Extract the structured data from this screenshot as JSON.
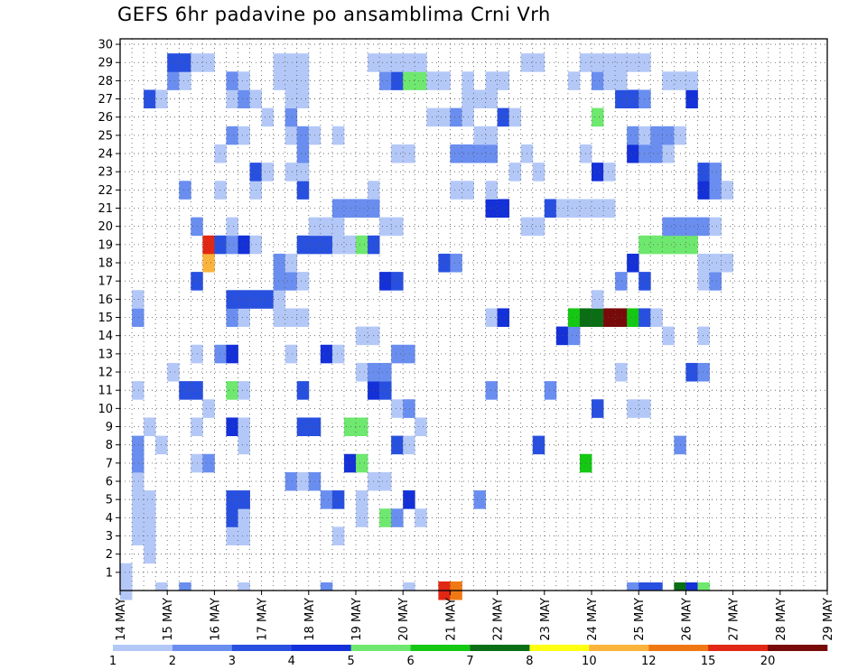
{
  "chart_data": {
    "type": "heatmap",
    "title": "GEFS 6hr padavine po ansamblima Crni Vrh",
    "x_tick_labels": [
      "14 MAY",
      "15 MAY",
      "16 MAY",
      "17 MAY",
      "18 MAY",
      "19 MAY",
      "20 MAY",
      "21 MAY",
      "22 MAY",
      "23 MAY",
      "24 MAY",
      "25 MAY",
      "26 MAY",
      "27 MAY",
      "28 MAY",
      "29 MAY"
    ],
    "y_tick_labels": [
      "1",
      "2",
      "3",
      "4",
      "5",
      "6",
      "7",
      "8",
      "9",
      "10",
      "11",
      "12",
      "13",
      "14",
      "15",
      "16",
      "17",
      "18",
      "19",
      "20",
      "21",
      "22",
      "23",
      "24",
      "25",
      "26",
      "27",
      "28",
      "29",
      "30"
    ],
    "x_time_steps_per_day": 4,
    "ylim": [
      0,
      30
    ],
    "grid": true,
    "legend_levels": [
      "1",
      "2",
      "3",
      "4",
      "5",
      "6",
      "7",
      "8",
      "10",
      "12",
      "15",
      "20"
    ],
    "legend_colors": [
      "#b4c8f8",
      "#6a8ef0",
      "#2850e0",
      "#1430d8",
      "#6ee86e",
      "#14c814",
      "#0a6e14",
      "#ffff14",
      "#fab43c",
      "#f07814",
      "#e02814",
      "#780a0a"
    ],
    "cells": [
      [
        0,
        1,
        1
      ],
      [
        30,
        5,
        2
      ],
      [
        31,
        11,
        2
      ],
      [
        0,
        0,
        11
      ],
      [
        27,
        0,
        15
      ],
      [
        28,
        0,
        12
      ],
      [
        2,
        2,
        1
      ],
      [
        10,
        4,
        1
      ],
      [
        25,
        9,
        1
      ],
      [
        36,
        11,
        2
      ],
      [
        24,
        10,
        1
      ],
      [
        2,
        3,
        1
      ],
      [
        1,
        3,
        1
      ],
      [
        9,
        3,
        1
      ],
      [
        10,
        3,
        1
      ],
      [
        22,
        4,
        5
      ],
      [
        23,
        4,
        2
      ],
      [
        24,
        5,
        4
      ],
      [
        25,
        4,
        1
      ],
      [
        1,
        4,
        1
      ],
      [
        2,
        4,
        1
      ],
      [
        9,
        4,
        3
      ],
      [
        10,
        4,
        1
      ],
      [
        18,
        3,
        1
      ],
      [
        20,
        4,
        1
      ],
      [
        1,
        5,
        1
      ],
      [
        2,
        5,
        1
      ],
      [
        9,
        5,
        3
      ],
      [
        10,
        5,
        3
      ],
      [
        17,
        5,
        2
      ],
      [
        18,
        5,
        3
      ],
      [
        14,
        6,
        2
      ],
      [
        15,
        6,
        1
      ],
      [
        16,
        6,
        2
      ],
      [
        20,
        5,
        1
      ],
      [
        21,
        6,
        1
      ],
      [
        22,
        6,
        1
      ],
      [
        1,
        6,
        1
      ],
      [
        1,
        7,
        2
      ],
      [
        6,
        7,
        1
      ],
      [
        7,
        7,
        2
      ],
      [
        19,
        7,
        4
      ],
      [
        20,
        7,
        5
      ],
      [
        39,
        7,
        6
      ],
      [
        1,
        8,
        2
      ],
      [
        3,
        8,
        1
      ],
      [
        10,
        8,
        1
      ],
      [
        23,
        8,
        3
      ],
      [
        24,
        8,
        1
      ],
      [
        35,
        8,
        3
      ],
      [
        47,
        8,
        2
      ],
      [
        2,
        9,
        1
      ],
      [
        6,
        9,
        1
      ],
      [
        9,
        9,
        4
      ],
      [
        10,
        9,
        1
      ],
      [
        15,
        9,
        3
      ],
      [
        16,
        9,
        3
      ],
      [
        19,
        9,
        5
      ],
      [
        20,
        9,
        5
      ],
      [
        7,
        10,
        1
      ],
      [
        23,
        10,
        1
      ],
      [
        24,
        10,
        2
      ],
      [
        40,
        10,
        3
      ],
      [
        43,
        10,
        1
      ],
      [
        44,
        10,
        1
      ],
      [
        1,
        11,
        1
      ],
      [
        5,
        11,
        3
      ],
      [
        6,
        11,
        3
      ],
      [
        9,
        11,
        5
      ],
      [
        10,
        11,
        1
      ],
      [
        15,
        11,
        3
      ],
      [
        21,
        11,
        4
      ],
      [
        22,
        11,
        3
      ],
      [
        4,
        12,
        1
      ],
      [
        20,
        12,
        1
      ],
      [
        21,
        12,
        2
      ],
      [
        22,
        12,
        2
      ],
      [
        48,
        12,
        3
      ],
      [
        49,
        12,
        2
      ],
      [
        42,
        12,
        1
      ],
      [
        6,
        13,
        1
      ],
      [
        8,
        13,
        2
      ],
      [
        9,
        13,
        4
      ],
      [
        14,
        13,
        1
      ],
      [
        17,
        13,
        4
      ],
      [
        18,
        13,
        1
      ],
      [
        23,
        13,
        2
      ],
      [
        24,
        13,
        2
      ],
      [
        20,
        14,
        1
      ],
      [
        21,
        14,
        1
      ],
      [
        37,
        14,
        4
      ],
      [
        38,
        14,
        2
      ],
      [
        49,
        14,
        1
      ],
      [
        46,
        14,
        1
      ],
      [
        1,
        15,
        2
      ],
      [
        9,
        15,
        2
      ],
      [
        10,
        15,
        1
      ],
      [
        13,
        15,
        1
      ],
      [
        14,
        15,
        1
      ],
      [
        15,
        15,
        1
      ],
      [
        31,
        15,
        1
      ],
      [
        32,
        15,
        4
      ],
      [
        38,
        15,
        6
      ],
      [
        39,
        15,
        7
      ],
      [
        40,
        15,
        7
      ],
      [
        41,
        15,
        20
      ],
      [
        42,
        15,
        20
      ],
      [
        43,
        15,
        6
      ],
      [
        44,
        15,
        3
      ],
      [
        45,
        15,
        1
      ],
      [
        1,
        16,
        1
      ],
      [
        9,
        16,
        3
      ],
      [
        10,
        16,
        3
      ],
      [
        11,
        16,
        3
      ],
      [
        12,
        16,
        3
      ],
      [
        13,
        16,
        1
      ],
      [
        40,
        16,
        1
      ],
      [
        6,
        17,
        3
      ],
      [
        13,
        17,
        2
      ],
      [
        14,
        17,
        2
      ],
      [
        15,
        17,
        1
      ],
      [
        22,
        17,
        4
      ],
      [
        23,
        17,
        3
      ],
      [
        42,
        17,
        2
      ],
      [
        44,
        17,
        3
      ],
      [
        49,
        17,
        1
      ],
      [
        50,
        17,
        2
      ],
      [
        7,
        18,
        10
      ],
      [
        13,
        18,
        2
      ],
      [
        14,
        18,
        1
      ],
      [
        27,
        18,
        3
      ],
      [
        28,
        18,
        2
      ],
      [
        43,
        18,
        4
      ],
      [
        49,
        18,
        1
      ],
      [
        50,
        18,
        1
      ],
      [
        51,
        18,
        1
      ],
      [
        7,
        19,
        15
      ],
      [
        8,
        19,
        3
      ],
      [
        9,
        19,
        2
      ],
      [
        10,
        19,
        4
      ],
      [
        11,
        19,
        1
      ],
      [
        15,
        19,
        3
      ],
      [
        16,
        19,
        3
      ],
      [
        17,
        19,
        3
      ],
      [
        18,
        19,
        1
      ],
      [
        19,
        19,
        1
      ],
      [
        20,
        19,
        5
      ],
      [
        21,
        19,
        3
      ],
      [
        44,
        19,
        5
      ],
      [
        45,
        19,
        5
      ],
      [
        46,
        19,
        5
      ],
      [
        47,
        19,
        5
      ],
      [
        48,
        19,
        5
      ],
      [
        6,
        20,
        2
      ],
      [
        9,
        20,
        1
      ],
      [
        16,
        20,
        1
      ],
      [
        17,
        20,
        1
      ],
      [
        18,
        20,
        1
      ],
      [
        22,
        20,
        1
      ],
      [
        23,
        20,
        1
      ],
      [
        34,
        20,
        1
      ],
      [
        35,
        20,
        1
      ],
      [
        46,
        20,
        2
      ],
      [
        47,
        20,
        2
      ],
      [
        48,
        20,
        2
      ],
      [
        49,
        20,
        2
      ],
      [
        50,
        20,
        1
      ],
      [
        18,
        21,
        2
      ],
      [
        19,
        21,
        2
      ],
      [
        20,
        21,
        2
      ],
      [
        21,
        21,
        2
      ],
      [
        31,
        21,
        4
      ],
      [
        32,
        21,
        4
      ],
      [
        36,
        21,
        3
      ],
      [
        37,
        21,
        1
      ],
      [
        38,
        21,
        1
      ],
      [
        39,
        21,
        1
      ],
      [
        40,
        21,
        1
      ],
      [
        41,
        21,
        1
      ],
      [
        5,
        22,
        2
      ],
      [
        8,
        22,
        1
      ],
      [
        11,
        22,
        1
      ],
      [
        15,
        22,
        3
      ],
      [
        21,
        22,
        1
      ],
      [
        28,
        22,
        1
      ],
      [
        29,
        22,
        1
      ],
      [
        31,
        22,
        1
      ],
      [
        49,
        22,
        4
      ],
      [
        50,
        22,
        2
      ],
      [
        51,
        22,
        1
      ],
      [
        11,
        23,
        3
      ],
      [
        12,
        23,
        1
      ],
      [
        14,
        23,
        1
      ],
      [
        15,
        23,
        1
      ],
      [
        33,
        23,
        1
      ],
      [
        35,
        23,
        1
      ],
      [
        40,
        23,
        4
      ],
      [
        41,
        23,
        1
      ],
      [
        49,
        23,
        3
      ],
      [
        50,
        23,
        2
      ],
      [
        8,
        24,
        1
      ],
      [
        15,
        24,
        2
      ],
      [
        23,
        24,
        1
      ],
      [
        24,
        24,
        1
      ],
      [
        28,
        24,
        2
      ],
      [
        29,
        24,
        2
      ],
      [
        30,
        24,
        2
      ],
      [
        31,
        24,
        2
      ],
      [
        34,
        24,
        1
      ],
      [
        39,
        24,
        1
      ],
      [
        43,
        24,
        4
      ],
      [
        44,
        24,
        2
      ],
      [
        45,
        24,
        2
      ],
      [
        46,
        24,
        1
      ],
      [
        9,
        25,
        2
      ],
      [
        10,
        25,
        1
      ],
      [
        14,
        25,
        1
      ],
      [
        15,
        25,
        2
      ],
      [
        16,
        25,
        1
      ],
      [
        18,
        25,
        1
      ],
      [
        30,
        25,
        1
      ],
      [
        31,
        25,
        1
      ],
      [
        43,
        25,
        2
      ],
      [
        44,
        25,
        1
      ],
      [
        45,
        25,
        2
      ],
      [
        46,
        25,
        2
      ],
      [
        47,
        25,
        1
      ],
      [
        12,
        26,
        1
      ],
      [
        14,
        26,
        2
      ],
      [
        26,
        26,
        1
      ],
      [
        27,
        26,
        1
      ],
      [
        28,
        26,
        2
      ],
      [
        29,
        26,
        1
      ],
      [
        32,
        26,
        3
      ],
      [
        33,
        26,
        1
      ],
      [
        40,
        26,
        5
      ],
      [
        2,
        27,
        3
      ],
      [
        3,
        27,
        1
      ],
      [
        9,
        27,
        1
      ],
      [
        10,
        27,
        2
      ],
      [
        11,
        27,
        1
      ],
      [
        14,
        27,
        1
      ],
      [
        15,
        27,
        1
      ],
      [
        29,
        27,
        1
      ],
      [
        30,
        27,
        1
      ],
      [
        31,
        27,
        1
      ],
      [
        42,
        27,
        3
      ],
      [
        43,
        27,
        3
      ],
      [
        44,
        27,
        2
      ],
      [
        48,
        27,
        4
      ],
      [
        4,
        28,
        2
      ],
      [
        5,
        28,
        1
      ],
      [
        9,
        28,
        2
      ],
      [
        10,
        28,
        1
      ],
      [
        13,
        28,
        1
      ],
      [
        14,
        28,
        1
      ],
      [
        15,
        28,
        1
      ],
      [
        22,
        28,
        2
      ],
      [
        23,
        28,
        3
      ],
      [
        24,
        28,
        5
      ],
      [
        25,
        28,
        5
      ],
      [
        26,
        28,
        1
      ],
      [
        27,
        28,
        1
      ],
      [
        29,
        28,
        1
      ],
      [
        31,
        28,
        1
      ],
      [
        32,
        28,
        1
      ],
      [
        38,
        28,
        1
      ],
      [
        40,
        28,
        2
      ],
      [
        41,
        28,
        1
      ],
      [
        42,
        28,
        1
      ],
      [
        46,
        28,
        1
      ],
      [
        47,
        28,
        1
      ],
      [
        48,
        28,
        1
      ],
      [
        4,
        29,
        3
      ],
      [
        5,
        29,
        3
      ],
      [
        6,
        29,
        1
      ],
      [
        7,
        29,
        1
      ],
      [
        13,
        29,
        1
      ],
      [
        14,
        29,
        1
      ],
      [
        15,
        29,
        1
      ],
      [
        21,
        29,
        1
      ],
      [
        22,
        29,
        1
      ],
      [
        23,
        29,
        1
      ],
      [
        24,
        29,
        1
      ],
      [
        25,
        29,
        1
      ],
      [
        34,
        29,
        1
      ],
      [
        35,
        29,
        1
      ],
      [
        39,
        29,
        1
      ],
      [
        40,
        29,
        1
      ],
      [
        41,
        29,
        1
      ],
      [
        42,
        29,
        1
      ],
      [
        43,
        29,
        1
      ],
      [
        44,
        29,
        1
      ]
    ],
    "bottom_row_cells": [
      [
        3,
        1
      ],
      [
        5,
        2
      ],
      [
        10,
        1
      ],
      [
        17,
        2
      ],
      [
        24,
        1
      ],
      [
        43,
        2
      ],
      [
        44,
        3
      ],
      [
        45,
        3
      ],
      [
        47,
        7
      ],
      [
        48,
        4
      ],
      [
        49,
        5
      ]
    ]
  }
}
